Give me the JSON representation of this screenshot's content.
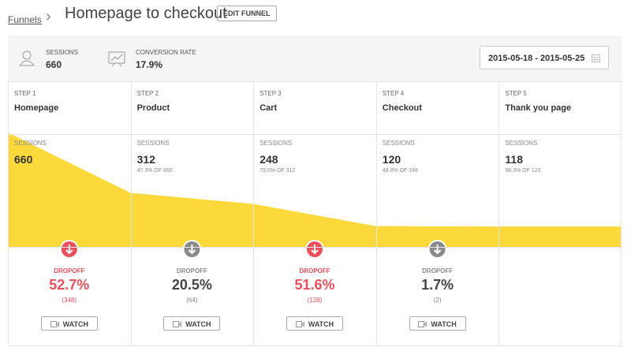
{
  "breadcrumb": {
    "link": "Funnels",
    "title": "Homepage to checkout",
    "button": "EDIT FUNNEL"
  },
  "summary": {
    "sessions_label": "SESSIONS",
    "sessions": "660",
    "conversion_label": "CONVERSION RATE",
    "conversion": "17.9%",
    "date_range": "2015-05-18 - 2015-05-25"
  },
  "area_color": "#fbd93b",
  "steps": [
    {
      "step": "STEP 1",
      "name": "Homepage",
      "sessions_label": "SESSIONS",
      "sessions": 660
    },
    {
      "step": "STEP 2",
      "name": "Product",
      "sessions_label": "SESSIONS",
      "sessions": 312,
      "share": "47.3% OF 660"
    },
    {
      "step": "STEP 3",
      "name": "Cart",
      "sessions_label": "SESSIONS",
      "sessions": 248,
      "share": "79.5% OF 312"
    },
    {
      "step": "STEP 4",
      "name": "Checkout",
      "sessions_label": "SESSIONS",
      "sessions": 120,
      "share": "48.4% OF 248"
    },
    {
      "step": "STEP 5",
      "name": "Thank you page",
      "sessions_label": "SESSIONS",
      "sessions": 118,
      "share": "98.3% OF 120"
    }
  ],
  "dropoffs": [
    {
      "label": "DROPOFF",
      "percent": "52.7%",
      "count": "(348)",
      "button": "WATCH",
      "color": "#e8505b"
    },
    {
      "label": "DROPOFF",
      "percent": "20.5%",
      "count": "(64)",
      "button": "WATCH",
      "color": "#8a8a8a"
    },
    {
      "label": "DROPOFF",
      "percent": "51.6%",
      "count": "(128)",
      "button": "WATCH",
      "color": "#e8505b"
    },
    {
      "label": "DROPOFF",
      "percent": "1.7%",
      "count": "(2)",
      "button": "WATCH",
      "color": "#8a8a8a"
    }
  ]
}
